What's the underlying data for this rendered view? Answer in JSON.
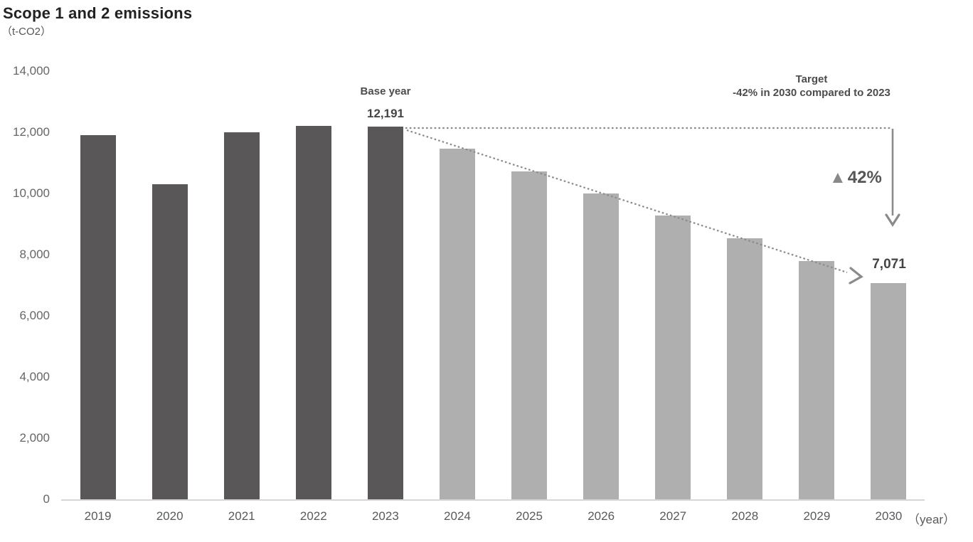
{
  "title": "Scope 1 and 2 emissions",
  "unit_label": "（t-CO2）",
  "axis": {
    "year_suffix": "（year）"
  },
  "annotations": {
    "base_year_label": "Base year",
    "base_year_value": "12,191",
    "target_title": "Target",
    "target_detail": "-42% in 2030 compared to 2023",
    "reduction_marker": "▲",
    "reduction_value": "42%",
    "target_value": "7,071"
  },
  "colors": {
    "actual_bar": "#595757",
    "projected_bar": "#b0afaf",
    "annotation_line": "#8c8b8b",
    "axis_line": "#d6d6d6"
  },
  "chart_data": {
    "type": "bar",
    "title": "Scope 1 and 2 emissions",
    "xlabel": "year",
    "ylabel": "t-CO2",
    "ylim": [
      0,
      14000
    ],
    "ytick_interval": 2000,
    "ytick_labels": [
      "0",
      "2,000",
      "4,000",
      "6,000",
      "8,000",
      "10,000",
      "12,000",
      "14,000"
    ],
    "grid": false,
    "legend": "none",
    "categories": [
      "2019",
      "2020",
      "2021",
      "2022",
      "2023",
      "2024",
      "2025",
      "2026",
      "2027",
      "2028",
      "2029",
      "2030"
    ],
    "values": [
      11900,
      10300,
      12000,
      12200,
      12191,
      11460,
      10730,
      10000,
      9270,
      8530,
      7800,
      7071
    ],
    "projected_from_index": 5,
    "data_labels": {
      "2023": "12,191",
      "2030": "7,071"
    },
    "notes": "2019-2023 actual (dark bars); 2024-2030 projected path to -42% target (light bars); values after 2023 estimated from linear reduction line"
  }
}
